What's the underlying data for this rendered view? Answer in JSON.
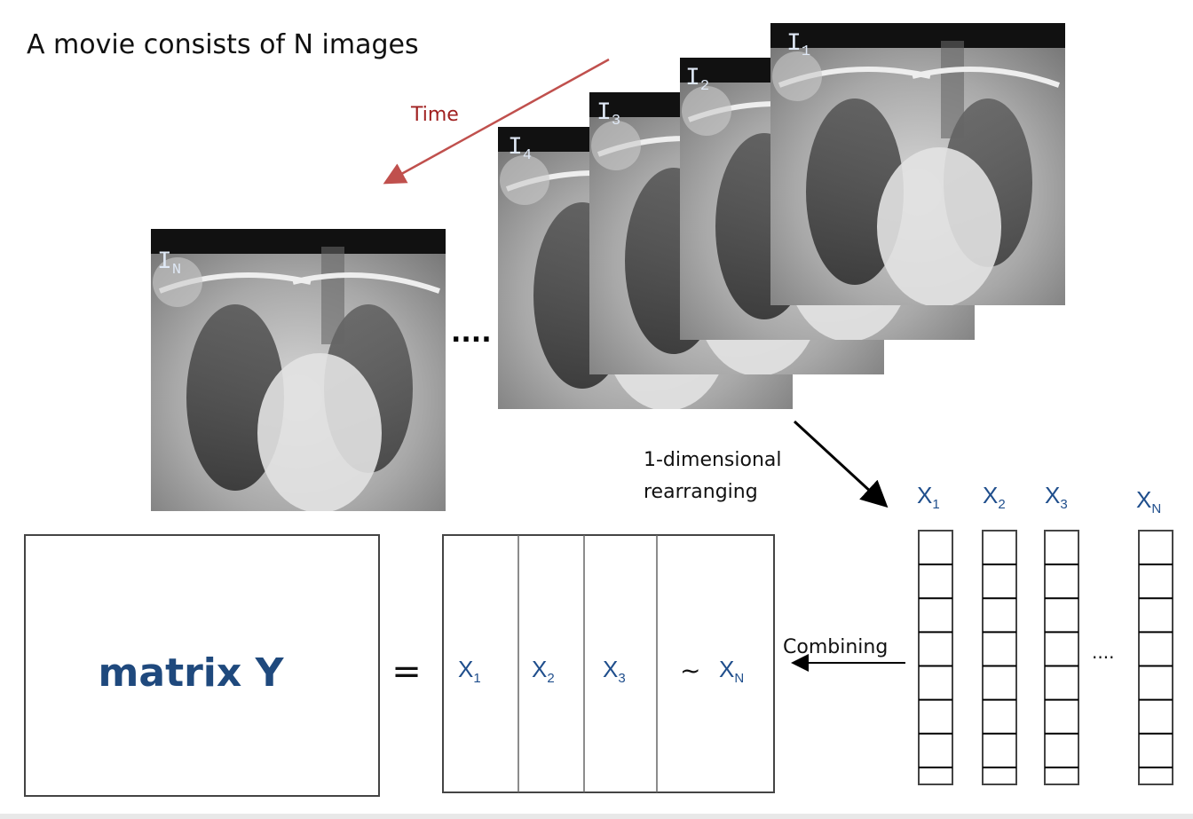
{
  "title": "A movie consists of N images",
  "time_label": "Time",
  "frames": [
    {
      "base": "I",
      "sub": "1"
    },
    {
      "base": "I",
      "sub": "2"
    },
    {
      "base": "I",
      "sub": "3"
    },
    {
      "base": "I",
      "sub": "4"
    }
  ],
  "last_frame": {
    "base": "I",
    "sub": "N"
  },
  "frames_ellipsis": "....",
  "rearrange_label": [
    "1-dimensional",
    "rearranging"
  ],
  "vectors": [
    {
      "base": "X",
      "sub": "1"
    },
    {
      "base": "X",
      "sub": "2"
    },
    {
      "base": "X",
      "sub": "3"
    },
    {
      "base": "X",
      "sub": "N"
    }
  ],
  "vectors_ellipsis": "....",
  "combine_label": "Combining",
  "matrix_label": "matrix Y",
  "equals": "=",
  "matrix_columns": [
    {
      "base": "X",
      "sub": "1"
    },
    {
      "base": "X",
      "sub": "2"
    },
    {
      "base": "X",
      "sub": "3"
    }
  ],
  "tilde": "~",
  "matrix_last": {
    "base": "X",
    "sub": "N"
  }
}
